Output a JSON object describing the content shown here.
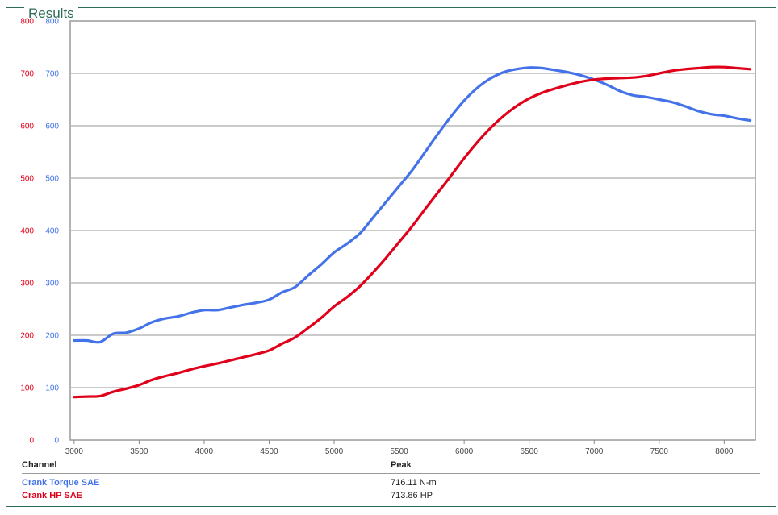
{
  "panel": {
    "title": "Results"
  },
  "colors": {
    "torque": "#4472e8",
    "hp": "#e0001a",
    "grid": "#b8b8b8",
    "frame": "#2e6b58"
  },
  "chart_data": {
    "type": "line",
    "x_ticks": [
      3000,
      3500,
      4000,
      4500,
      5000,
      5500,
      6000,
      6500,
      7000,
      7500,
      8000
    ],
    "xlim": [
      2970,
      8240
    ],
    "left_axis": {
      "ticks": [
        0,
        100,
        200,
        300,
        400,
        500,
        600,
        700,
        800
      ],
      "ylim": [
        0,
        800
      ],
      "color": "#e0001a"
    },
    "right_axis": {
      "ticks": [
        0,
        100,
        200,
        300,
        400,
        500,
        600,
        700,
        800
      ],
      "ylim": [
        0,
        800
      ],
      "color": "#4472e8"
    },
    "grid": true,
    "series": [
      {
        "name": "Crank Torque SAE",
        "color": "#4472e8",
        "x": [
          3000,
          3100,
          3200,
          3300,
          3400,
          3500,
          3600,
          3700,
          3800,
          3900,
          4000,
          4100,
          4200,
          4300,
          4400,
          4500,
          4600,
          4700,
          4800,
          4900,
          5000,
          5100,
          5200,
          5300,
          5400,
          5500,
          5600,
          5700,
          5800,
          5900,
          6000,
          6100,
          6200,
          6300,
          6400,
          6500,
          6600,
          6700,
          6800,
          6900,
          7000,
          7100,
          7200,
          7300,
          7400,
          7500,
          7600,
          7700,
          7800,
          7900,
          8000,
          8100,
          8200
        ],
        "y": [
          190,
          190,
          187,
          203,
          205,
          213,
          225,
          232,
          236,
          243,
          248,
          248,
          253,
          258,
          262,
          268,
          282,
          292,
          314,
          335,
          358,
          375,
          395,
          425,
          455,
          485,
          515,
          550,
          585,
          618,
          648,
          672,
          690,
          702,
          708,
          711,
          710,
          706,
          702,
          696,
          688,
          678,
          666,
          658,
          655,
          650,
          645,
          637,
          628,
          622,
          619,
          614,
          610
        ]
      },
      {
        "name": "Crank HP SAE",
        "color": "#e0001a",
        "x": [
          3000,
          3100,
          3200,
          3300,
          3400,
          3500,
          3600,
          3700,
          3800,
          3900,
          4000,
          4100,
          4200,
          4300,
          4400,
          4500,
          4600,
          4700,
          4800,
          4900,
          5000,
          5100,
          5200,
          5300,
          5400,
          5500,
          5600,
          5700,
          5800,
          5900,
          6000,
          6100,
          6200,
          6300,
          6400,
          6500,
          6600,
          6700,
          6800,
          6900,
          7000,
          7100,
          7200,
          7300,
          7400,
          7500,
          7600,
          7700,
          7800,
          7900,
          8000,
          8100,
          8200
        ],
        "y": [
          82,
          83,
          84,
          92,
          98,
          105,
          115,
          122,
          128,
          135,
          141,
          146,
          152,
          158,
          164,
          171,
          184,
          196,
          214,
          233,
          255,
          273,
          294,
          320,
          348,
          378,
          408,
          441,
          473,
          505,
          538,
          568,
          595,
          618,
          637,
          652,
          663,
          671,
          678,
          684,
          688,
          690,
          691,
          692,
          695,
          700,
          705,
          708,
          710,
          712,
          712,
          710,
          708
        ]
      }
    ]
  },
  "legend": {
    "col_channel": "Channel",
    "col_peak": "Peak",
    "rows": [
      {
        "name": "Crank Torque SAE",
        "peak": "716.11 N-m",
        "color": "#4472e8"
      },
      {
        "name": "Crank HP SAE",
        "peak": "713.86 HP",
        "color": "#e0001a"
      }
    ]
  }
}
